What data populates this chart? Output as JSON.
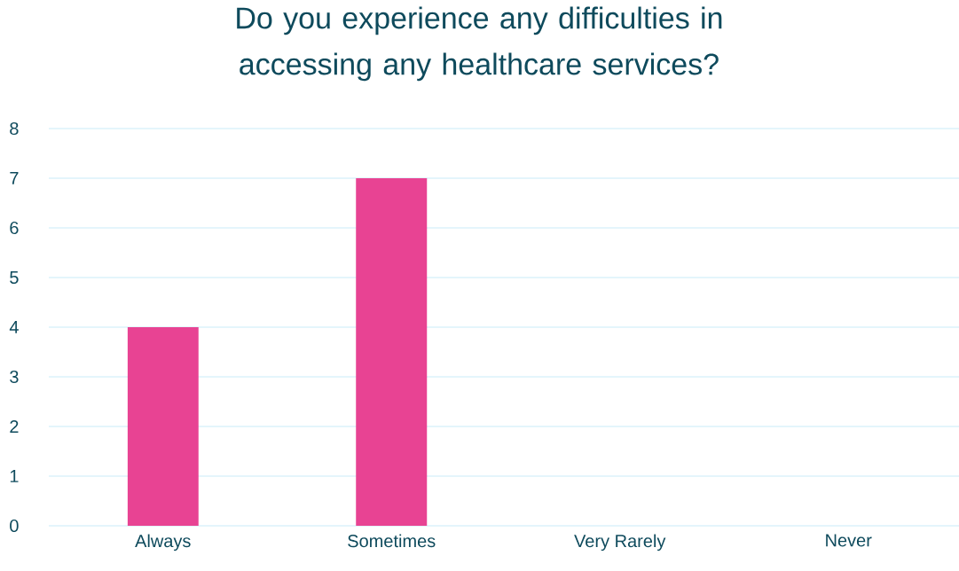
{
  "chart_data": {
    "type": "bar",
    "title": "Do you experience any difficulties in accessing any healthcare services?",
    "categories": [
      "Always",
      "Sometimes",
      "Very Rarely",
      "Never"
    ],
    "values": [
      4,
      7,
      0,
      0
    ],
    "color": "#e84393",
    "ylim": [
      0,
      8
    ],
    "yticks": [
      0,
      1,
      2,
      3,
      4,
      5,
      6,
      7,
      8
    ],
    "grid": "y"
  }
}
